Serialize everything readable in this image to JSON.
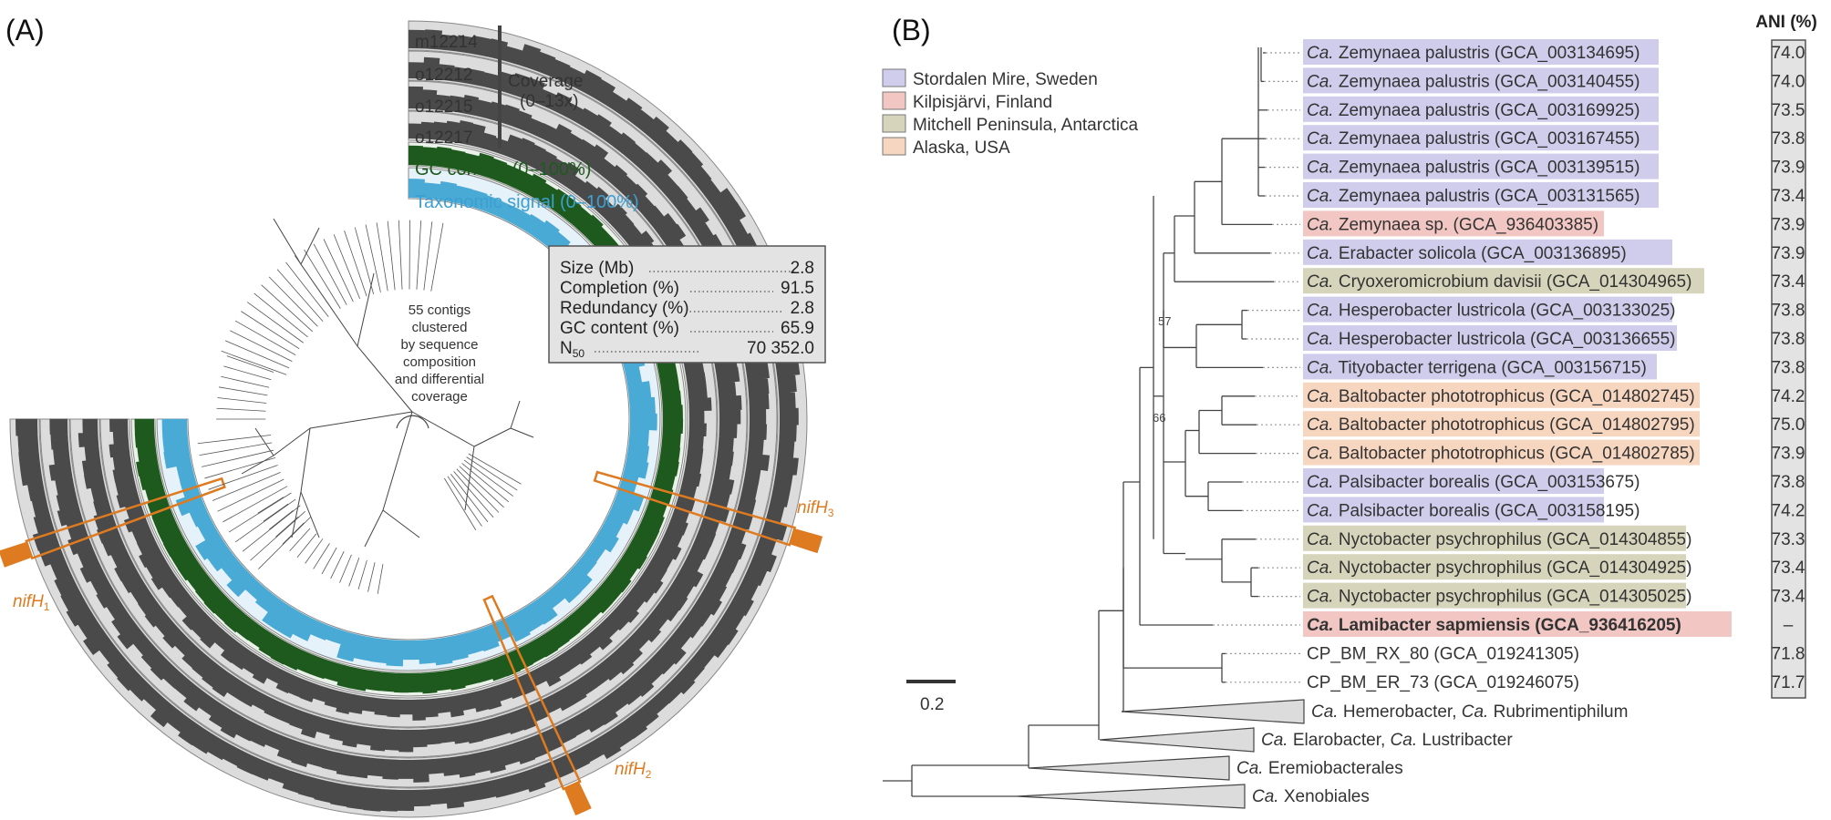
{
  "panelA": {
    "label": "(A)",
    "tracks": [
      "m12214",
      "o12212",
      "o12215",
      "o12217"
    ],
    "coverage_title": "Coverage",
    "coverage_range": "(0–13x)",
    "gc_label": "GC content (0–100%)",
    "tax_label": "Taxonomic signal (0–100%)",
    "center_text": [
      "55 contigs",
      "clustered",
      "by sequence",
      "composition",
      "and differential",
      "coverage"
    ],
    "stats": [
      {
        "label": "Size (Mb)",
        "value": "2.8"
      },
      {
        "label": "Completion (%)",
        "value": "91.5"
      },
      {
        "label": "Redundancy (%)",
        "value": "2.8"
      },
      {
        "label": "GC content (%)",
        "value": "65.9"
      },
      {
        "label": "N",
        "sub": "50",
        "value": "70 352.0"
      }
    ],
    "nif_genes": [
      {
        "name": "nifH",
        "sub": "1"
      },
      {
        "name": "nifH",
        "sub": "2"
      },
      {
        "name": "nifH",
        "sub": "3"
      }
    ],
    "colors": {
      "ring_bg": "#dcdcdc",
      "bar": "#4a4a4a",
      "gc": "#1e5a1e",
      "tax": "#4aaad6",
      "tax_bg": "#e6f2fa",
      "nif": "#de7a1f"
    }
  },
  "panelB": {
    "label": "(B)",
    "ani_header": "ANI (%)",
    "legend": [
      {
        "label": "Stordalen Mire, Sweden",
        "color": "#cfcdeb"
      },
      {
        "label": "Kilpisjärvi, Finland",
        "color": "#f2c7c3"
      },
      {
        "label": "Mitchell Peninsula, Antarctica",
        "color": "#d6d5bc"
      },
      {
        "label": "Alaska, USA",
        "color": "#f7d6c0"
      }
    ],
    "scale": "0.2",
    "bootstrap": [
      "57",
      "66"
    ],
    "taxa": [
      {
        "pre": "Ca.",
        "name": " Zemynaea palustris (GCA_003134695)",
        "ani": "74.0",
        "color": "#cfcdeb"
      },
      {
        "pre": "Ca.",
        "name": " Zemynaea palustris (GCA_003140455)",
        "ani": "74.0",
        "color": "#cfcdeb"
      },
      {
        "pre": "Ca.",
        "name": " Zemynaea palustris (GCA_003169925)",
        "ani": "73.5",
        "color": "#cfcdeb"
      },
      {
        "pre": "Ca.",
        "name": " Zemynaea palustris (GCA_003167455)",
        "ani": "73.8",
        "color": "#cfcdeb"
      },
      {
        "pre": "Ca.",
        "name": " Zemynaea palustris (GCA_003139515)",
        "ani": "73.9",
        "color": "#cfcdeb"
      },
      {
        "pre": "Ca.",
        "name": " Zemynaea palustris (GCA_003131565)",
        "ani": "73.4",
        "color": "#cfcdeb"
      },
      {
        "pre": "Ca.",
        "name": " Zemynaea sp. (GCA_936403385)",
        "ani": "73.9",
        "color": "#f2c7c3"
      },
      {
        "pre": "Ca.",
        "name": " Erabacter solicola (GCA_003136895)",
        "ani": "73.9",
        "color": "#cfcdeb"
      },
      {
        "pre": "Ca.",
        "name": " Cryoxeromicrobium davisii (GCA_014304965)",
        "ani": "73.4",
        "color": "#d6d5bc"
      },
      {
        "pre": "Ca.",
        "name": " Hesperobacter lustricola (GCA_003133025)",
        "ani": "73.8",
        "color": "#cfcdeb"
      },
      {
        "pre": "Ca.",
        "name": " Hesperobacter lustricola (GCA_003136655)",
        "ani": "73.8",
        "color": "#cfcdeb"
      },
      {
        "pre": "Ca.",
        "name": " Tityobacter terrigena (GCA_003156715)",
        "ani": "73.8",
        "color": "#cfcdeb"
      },
      {
        "pre": "Ca.",
        "name": " Baltobacter phototrophicus (GCA_014802745)",
        "ani": "74.2",
        "color": "#f7d6c0"
      },
      {
        "pre": "Ca.",
        "name": " Baltobacter phototrophicus (GCA_014802795)",
        "ani": "75.0",
        "color": "#f7d6c0"
      },
      {
        "pre": "Ca.",
        "name": " Baltobacter phototrophicus (GCA_014802785)",
        "ani": "73.9",
        "color": "#f7d6c0"
      },
      {
        "pre": "Ca.",
        "name": " Palsibacter borealis (GCA_003153675)",
        "ani": "73.8",
        "color": "#cfcdeb"
      },
      {
        "pre": "Ca.",
        "name": " Palsibacter borealis (GCA_003158195)",
        "ani": "74.2",
        "color": "#cfcdeb"
      },
      {
        "pre": "Ca.",
        "name": " Nyctobacter psychrophilus (GCA_014304855)",
        "ani": "73.3",
        "color": "#d6d5bc"
      },
      {
        "pre": "Ca.",
        "name": " Nyctobacter psychrophilus (GCA_014304925)",
        "ani": "73.4",
        "color": "#d6d5bc"
      },
      {
        "pre": "Ca.",
        "name": " Nyctobacter psychrophilus (GCA_014305025)",
        "ani": "73.4",
        "color": "#d6d5bc"
      },
      {
        "pre": "Ca.",
        "name": " Lamibacter sapmiensis (GCA_936416205)",
        "ani": "–",
        "color": "#f2c7c3",
        "bold": true
      },
      {
        "pre": "",
        "name": "CP_BM_RX_80 (GCA_019241305)",
        "ani": "71.8",
        "color": ""
      },
      {
        "pre": "",
        "name": "CP_BM_ER_73 (GCA_019246075)",
        "ani": "71.7",
        "color": ""
      }
    ],
    "collapsed": [
      {
        "parts": [
          {
            "t": "Ca.",
            "i": true
          },
          {
            "t": " Hemerobacter, ",
            "i": false
          },
          {
            "t": "Ca.",
            "i": true
          },
          {
            "t": " Rubrimentiphilum",
            "i": false
          }
        ]
      },
      {
        "parts": [
          {
            "t": "Ca.",
            "i": true
          },
          {
            "t": " Elarobacter, ",
            "i": false
          },
          {
            "t": "Ca.",
            "i": true
          },
          {
            "t": " Lustribacter",
            "i": false
          }
        ]
      },
      {
        "parts": [
          {
            "t": "Ca.",
            "i": true
          },
          {
            "t": " Eremiobacterales",
            "i": false
          }
        ]
      },
      {
        "parts": [
          {
            "t": "Ca.",
            "i": true
          },
          {
            "t": " Xenobiales",
            "i": false
          }
        ]
      }
    ]
  }
}
